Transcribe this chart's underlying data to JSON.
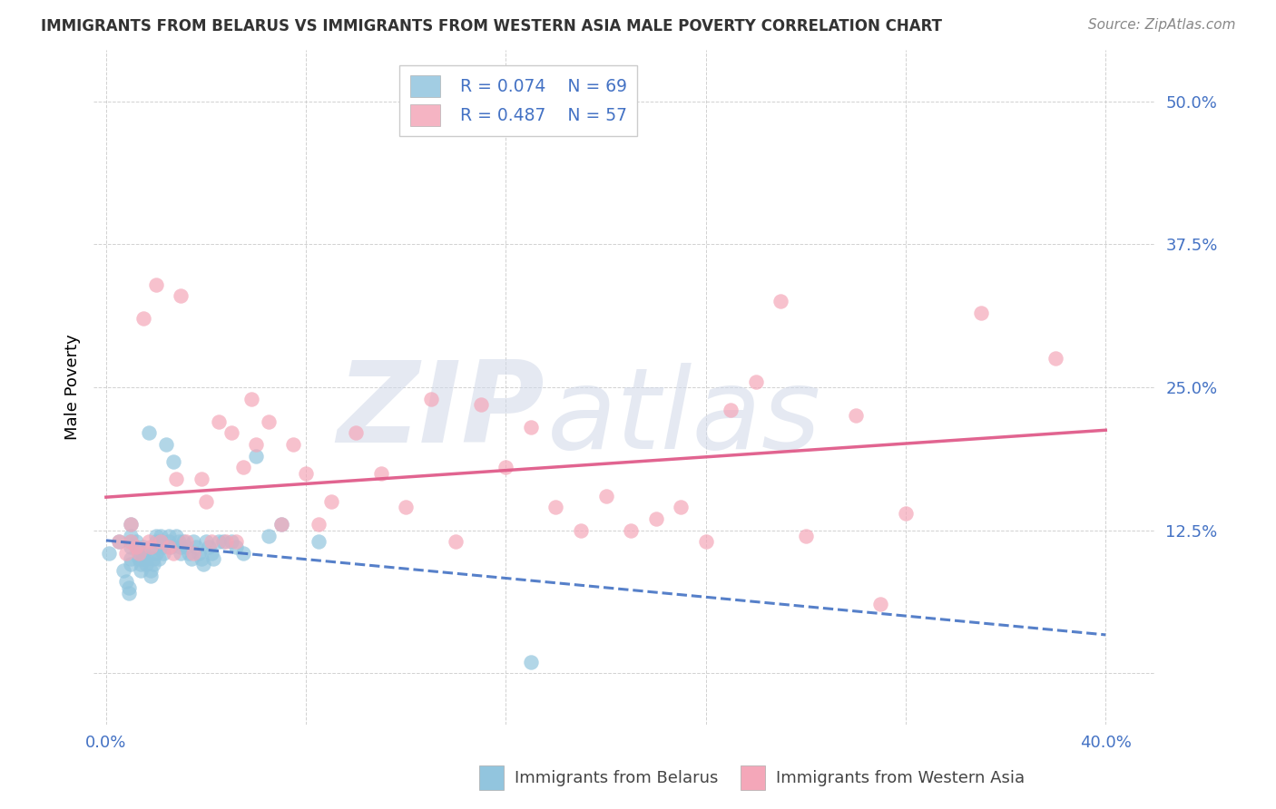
{
  "title": "IMMIGRANTS FROM BELARUS VS IMMIGRANTS FROM WESTERN ASIA MALE POVERTY CORRELATION CHART",
  "source": "Source: ZipAtlas.com",
  "ylabel": "Male Poverty",
  "xlim": [
    -0.005,
    0.42
  ],
  "ylim": [
    -0.045,
    0.545
  ],
  "ytick_values": [
    0.0,
    0.125,
    0.25,
    0.375,
    0.5
  ],
  "ytick_labels": [
    "",
    "12.5%",
    "25.0%",
    "37.5%",
    "50.0%"
  ],
  "xtick_values": [
    0.0,
    0.08,
    0.16,
    0.24,
    0.32,
    0.4
  ],
  "xtick_labels": [
    "0.0%",
    "",
    "",
    "",
    "",
    "40.0%"
  ],
  "legend_R_blue": "R = 0.074",
  "legend_N_blue": "N = 69",
  "legend_R_pink": "R = 0.487",
  "legend_N_pink": "N = 57",
  "legend_label_blue": "Immigrants from Belarus",
  "legend_label_pink": "Immigrants from Western Asia",
  "color_blue": "#92c5de",
  "color_pink": "#f4a7b9",
  "trendline_blue_color": "#4472c4",
  "trendline_pink_color": "#e05c8a",
  "watermark_zip": "ZIP",
  "watermark_atlas": "atlas",
  "belarus_x": [
    0.001,
    0.005,
    0.007,
    0.008,
    0.009,
    0.009,
    0.01,
    0.01,
    0.01,
    0.01,
    0.01,
    0.01,
    0.012,
    0.012,
    0.013,
    0.013,
    0.014,
    0.014,
    0.015,
    0.015,
    0.015,
    0.016,
    0.016,
    0.017,
    0.018,
    0.018,
    0.019,
    0.019,
    0.02,
    0.02,
    0.02,
    0.02,
    0.021,
    0.022,
    0.022,
    0.023,
    0.023,
    0.024,
    0.025,
    0.025,
    0.026,
    0.027,
    0.028,
    0.029,
    0.03,
    0.03,
    0.031,
    0.032,
    0.033,
    0.034,
    0.035,
    0.036,
    0.037,
    0.038,
    0.039,
    0.04,
    0.041,
    0.042,
    0.043,
    0.045,
    0.047,
    0.05,
    0.052,
    0.055,
    0.06,
    0.065,
    0.07,
    0.085,
    0.17
  ],
  "belarus_y": [
    0.105,
    0.115,
    0.09,
    0.08,
    0.075,
    0.07,
    0.13,
    0.12,
    0.115,
    0.11,
    0.1,
    0.095,
    0.115,
    0.11,
    0.105,
    0.1,
    0.095,
    0.09,
    0.11,
    0.105,
    0.1,
    0.1,
    0.095,
    0.21,
    0.09,
    0.085,
    0.1,
    0.095,
    0.12,
    0.115,
    0.11,
    0.105,
    0.1,
    0.12,
    0.115,
    0.11,
    0.105,
    0.2,
    0.12,
    0.115,
    0.11,
    0.185,
    0.12,
    0.115,
    0.11,
    0.105,
    0.115,
    0.11,
    0.105,
    0.1,
    0.115,
    0.11,
    0.105,
    0.1,
    0.095,
    0.115,
    0.11,
    0.105,
    0.1,
    0.115,
    0.115,
    0.115,
    0.11,
    0.105,
    0.19,
    0.12,
    0.13,
    0.115,
    0.01
  ],
  "western_asia_x": [
    0.005,
    0.008,
    0.01,
    0.01,
    0.012,
    0.013,
    0.015,
    0.017,
    0.018,
    0.02,
    0.022,
    0.025,
    0.027,
    0.028,
    0.03,
    0.032,
    0.035,
    0.038,
    0.04,
    0.042,
    0.045,
    0.048,
    0.05,
    0.052,
    0.055,
    0.058,
    0.06,
    0.065,
    0.07,
    0.075,
    0.08,
    0.085,
    0.09,
    0.1,
    0.11,
    0.12,
    0.13,
    0.14,
    0.15,
    0.16,
    0.17,
    0.18,
    0.19,
    0.2,
    0.21,
    0.22,
    0.23,
    0.24,
    0.25,
    0.26,
    0.27,
    0.28,
    0.3,
    0.31,
    0.32,
    0.35,
    0.38
  ],
  "western_asia_y": [
    0.115,
    0.105,
    0.13,
    0.115,
    0.11,
    0.105,
    0.31,
    0.115,
    0.11,
    0.34,
    0.115,
    0.11,
    0.105,
    0.17,
    0.33,
    0.115,
    0.105,
    0.17,
    0.15,
    0.115,
    0.22,
    0.115,
    0.21,
    0.115,
    0.18,
    0.24,
    0.2,
    0.22,
    0.13,
    0.2,
    0.175,
    0.13,
    0.15,
    0.21,
    0.175,
    0.145,
    0.24,
    0.115,
    0.235,
    0.18,
    0.215,
    0.145,
    0.125,
    0.155,
    0.125,
    0.135,
    0.145,
    0.115,
    0.23,
    0.255,
    0.325,
    0.12,
    0.225,
    0.06,
    0.14,
    0.315,
    0.275
  ]
}
